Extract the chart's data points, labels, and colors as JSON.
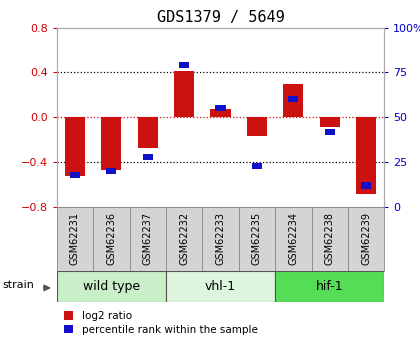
{
  "title": "GDS1379 / 5649",
  "samples": [
    "GSM62231",
    "GSM62236",
    "GSM62237",
    "GSM62232",
    "GSM62233",
    "GSM62235",
    "GSM62234",
    "GSM62238",
    "GSM62239"
  ],
  "log2_ratio": [
    -0.52,
    -0.47,
    -0.27,
    0.41,
    0.07,
    -0.17,
    0.3,
    -0.09,
    -0.68
  ],
  "percentile_rank": [
    18,
    20,
    28,
    79,
    55,
    23,
    60,
    42,
    12
  ],
  "groups": [
    {
      "label": "wild type",
      "start": 0,
      "end": 3,
      "color": "#c8efc8"
    },
    {
      "label": "vhl-1",
      "start": 3,
      "end": 6,
      "color": "#dcf5dc"
    },
    {
      "label": "hif-1",
      "start": 6,
      "end": 9,
      "color": "#55dd55"
    }
  ],
  "ylim_left": [
    -0.8,
    0.8
  ],
  "ylim_right": [
    0,
    100
  ],
  "bar_width": 0.55,
  "red_color": "#cc1111",
  "blue_color": "#1111cc",
  "grid_color": "#000000",
  "zero_line_color": "#cc1111",
  "bg_color": "#ffffff",
  "plot_bg_color": "#ffffff",
  "label_color_left": "#cc0000",
  "label_color_right": "#0000cc",
  "tick_label_fontsize": 8,
  "sample_label_fontsize": 7,
  "group_label_fontsize": 9,
  "title_fontsize": 11
}
